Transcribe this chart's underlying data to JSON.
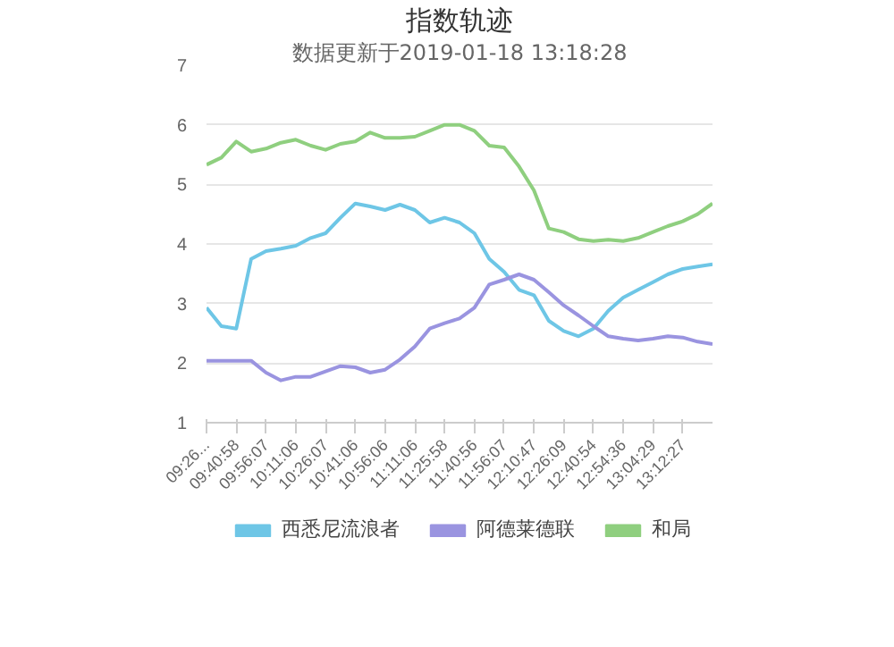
{
  "chart_data": {
    "type": "line",
    "title": "指数轨迹",
    "subtitle": "数据更新于2019-01-18 13:18:28",
    "categories": [
      "09:26...",
      null,
      "09:40:58",
      null,
      "09:56:07",
      null,
      "10:11:06",
      null,
      "10:26:07",
      null,
      "10:41:06",
      null,
      "10:56:06",
      null,
      "11:11:06",
      null,
      "11:25:58",
      null,
      "11:40:56",
      null,
      "11:56:07",
      null,
      "12:10:47",
      null,
      "12:26:09",
      null,
      "12:40:54",
      null,
      "12:54:36",
      null,
      "13:04:29",
      null,
      "13:12:27",
      null,
      null
    ],
    "series": [
      {
        "name": "西悉尼流浪者",
        "color": "#6ec6e6",
        "values": [
          2.93,
          2.62,
          2.58,
          3.75,
          3.88,
          3.92,
          3.97,
          4.1,
          4.18,
          4.44,
          4.68,
          4.63,
          4.57,
          4.66,
          4.57,
          4.36,
          4.44,
          4.36,
          4.18,
          3.75,
          3.53,
          3.23,
          3.14,
          2.71,
          2.54,
          2.45,
          2.58,
          2.88,
          3.1,
          3.23,
          3.36,
          3.49,
          3.58,
          3.62,
          3.66
        ]
      },
      {
        "name": "阿德莱德联",
        "color": "#9a94e0",
        "values": [
          2.04,
          2.04,
          2.04,
          2.04,
          1.84,
          1.71,
          1.77,
          1.77,
          1.86,
          1.95,
          1.93,
          1.84,
          1.89,
          2.06,
          2.28,
          2.58,
          2.67,
          2.75,
          2.93,
          3.32,
          3.4,
          3.49,
          3.4,
          3.19,
          2.97,
          2.8,
          2.62,
          2.45,
          2.41,
          2.38,
          2.41,
          2.45,
          2.43,
          2.36,
          2.32
        ]
      },
      {
        "name": "和局",
        "color": "#8fcf7f",
        "values": [
          5.33,
          5.45,
          5.72,
          5.55,
          5.6,
          5.7,
          5.75,
          5.65,
          5.58,
          5.68,
          5.72,
          5.87,
          5.78,
          5.78,
          5.8,
          5.9,
          6.0,
          6.0,
          5.9,
          5.65,
          5.62,
          5.3,
          4.9,
          4.26,
          4.2,
          4.08,
          4.05,
          4.07,
          4.05,
          4.1,
          4.2,
          4.3,
          4.38,
          4.5,
          4.68
        ]
      }
    ],
    "ylim": [
      1,
      7
    ],
    "yticks": [
      1,
      2,
      3,
      4,
      5,
      6,
      7
    ],
    "grid": "y",
    "legend": "bottom",
    "marker": "none",
    "line_style": "solid"
  }
}
